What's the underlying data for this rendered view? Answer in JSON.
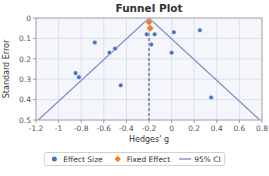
{
  "chart_data": {
    "type": "scatter",
    "title": "Funnel Plot",
    "xlabel": "Hedges' g",
    "ylabel": "Standard Error",
    "xlim": [
      -1.2,
      0.8
    ],
    "ylim": [
      0.5,
      0.0
    ],
    "xticks": [
      -1.2,
      -1,
      -0.8,
      -0.6,
      -0.4,
      -0.2,
      0,
      0.2,
      0.4,
      0.6,
      0.8
    ],
    "yticks": [
      0,
      0.1,
      0.2,
      0.3,
      0.4,
      0.5
    ],
    "grid": true,
    "legend": "bottom",
    "fixed_effect_x": -0.2,
    "series": [
      {
        "name": "Effect Size",
        "type": "scatter",
        "marker": "circle",
        "color": "#4472C4",
        "x": [
          -0.85,
          -0.82,
          -0.68,
          -0.55,
          -0.5,
          -0.45,
          -0.22,
          -0.18,
          -0.15,
          0.0,
          0.02,
          0.25,
          0.35
        ],
        "values": [
          0.27,
          0.29,
          0.12,
          0.17,
          0.15,
          0.33,
          0.08,
          0.13,
          0.08,
          0.17,
          0.07,
          0.06,
          0.39
        ]
      },
      {
        "name": "Fixed Effect",
        "type": "scatter",
        "marker": "diamond",
        "color": "#ED7D31",
        "x": [
          -0.2,
          -0.19
        ],
        "values": [
          0.02,
          0.05
        ]
      },
      {
        "name": "95% CI",
        "type": "line",
        "line_style": "solid",
        "color": "#8888CC",
        "x": [
          -1.18,
          -0.2,
          0.78
        ],
        "values": [
          0.5,
          0.0,
          0.5
        ]
      }
    ]
  }
}
